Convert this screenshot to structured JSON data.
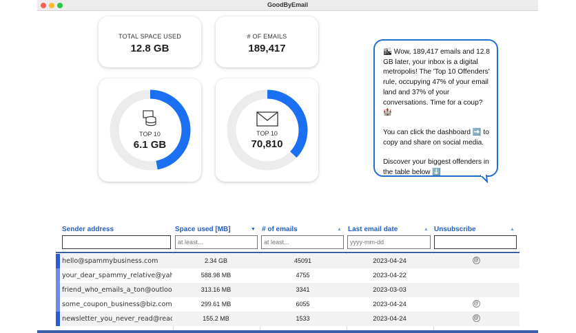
{
  "window": {
    "title": "GoodByEmail"
  },
  "stats": {
    "space_label": "TOTAL SPACE USED",
    "space_value": "12.8 GB",
    "emails_label": "# OF EMAILS",
    "emails_value": "189,417"
  },
  "rings": {
    "storage": {
      "label": "TOP 10",
      "value": "6.1 GB",
      "fraction": 0.47,
      "icon": "database-icon"
    },
    "emails": {
      "label": "TOP 10",
      "value": "70,810",
      "fraction": 0.37,
      "icon": "envelope-icon"
    },
    "accent": "#1a6ff2",
    "track": "#ececec"
  },
  "bubble": {
    "p1": "🏙 Wow, 189,417 emails and 12.8 GB later, your inbox is a digital metropolis! The 'Top 10 Offenders' rule, occupying 47% of your email land and 37% of your conversations. Time for a coup? 🏰",
    "p2": "You can click the dashboard ➡️ to copy and share on social media.",
    "p3": "Discover your biggest offenders in the table below ⬇️"
  },
  "table": {
    "headers": {
      "sender": "Sender address",
      "space": "Space used [MB]",
      "emails": "# of emails",
      "date": "Last email date",
      "unsub": "Unsubscribe"
    },
    "placeholders": {
      "space": "at least...",
      "emails": "at least...",
      "date": "yyyy-mm-dd"
    },
    "rows": [
      {
        "sender": "hello@spammybusiness.com",
        "space": "2.34 GB",
        "emails": "45091",
        "date": "2023-04-24",
        "unsub": true
      },
      {
        "sender": "your_dear_spammy_relative@yah",
        "space": "588.98 MB",
        "emails": "4755",
        "date": "2023-04-22",
        "unsub": false
      },
      {
        "sender": "friend_who_emails_a_ton@outloo",
        "space": "313.16 MB",
        "emails": "3341",
        "date": "2023-03-03",
        "unsub": false
      },
      {
        "sender": "some_coupon_business@biz.com",
        "space": "299.61 MB",
        "emails": "6055",
        "date": "2023-04-24",
        "unsub": true
      },
      {
        "sender": "newsletter_you_never_read@read",
        "space": "155.2 MB",
        "emails": "1533",
        "date": "2023-04-24",
        "unsub": true
      }
    ]
  }
}
